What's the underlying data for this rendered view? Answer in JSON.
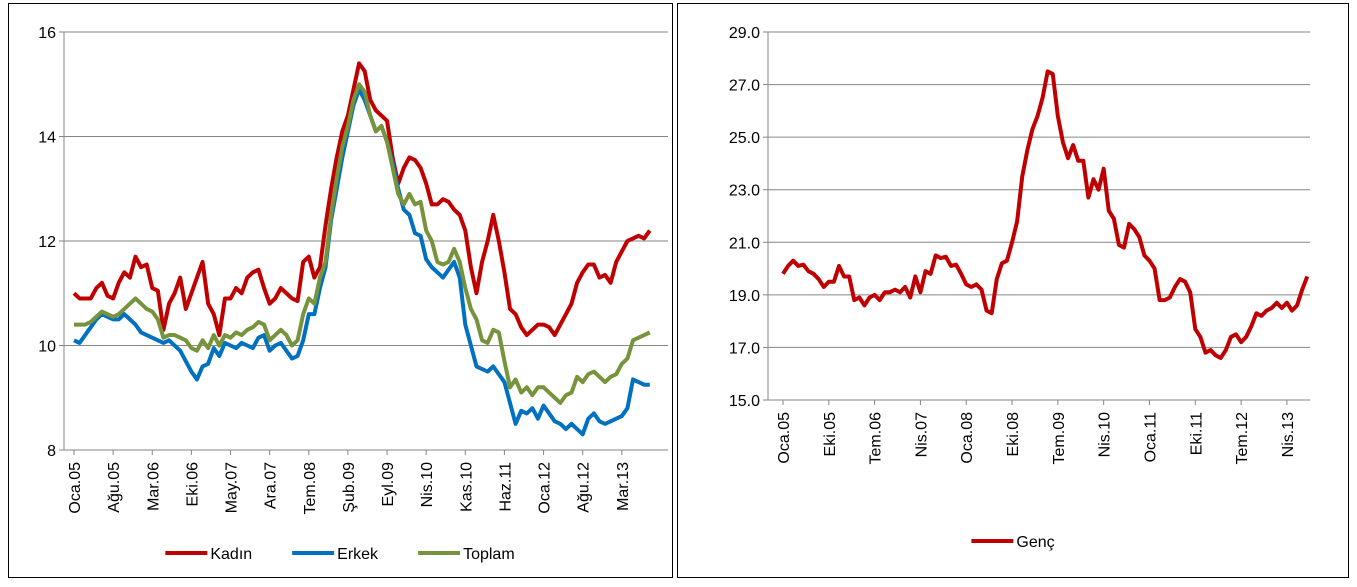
{
  "chart_data": [
    {
      "type": "line",
      "categories": [
        "Oca.05",
        null,
        null,
        null,
        null,
        null,
        null,
        "Ağu.05",
        null,
        null,
        null,
        null,
        null,
        null,
        "Mar.06",
        null,
        null,
        null,
        null,
        null,
        null,
        "Eki.06",
        null,
        null,
        null,
        null,
        null,
        null,
        "May.07",
        null,
        null,
        null,
        null,
        null,
        null,
        "Ara.07",
        null,
        null,
        null,
        null,
        null,
        null,
        "Tem.08",
        null,
        null,
        null,
        null,
        null,
        null,
        "Şub.09",
        null,
        null,
        null,
        null,
        null,
        null,
        "Eyl.09",
        null,
        null,
        null,
        null,
        null,
        null,
        "Nis.10",
        null,
        null,
        null,
        null,
        null,
        null,
        "Kas.10",
        null,
        null,
        null,
        null,
        null,
        null,
        "Haz.11",
        null,
        null,
        null,
        null,
        null,
        null,
        "Oca.12",
        null,
        null,
        null,
        null,
        null,
        null,
        "Ağu.12",
        null,
        null,
        null,
        null,
        null,
        null,
        "Mar.13",
        null,
        null,
        null,
        null,
        null
      ],
      "series": [
        {
          "name": "Kadın",
          "color": "#c00000",
          "values": [
            11.0,
            10.9,
            10.9,
            10.9,
            11.1,
            11.2,
            10.95,
            10.9,
            11.2,
            11.4,
            11.3,
            11.7,
            11.5,
            11.55,
            11.1,
            11.05,
            10.3,
            10.8,
            11.0,
            11.3,
            10.7,
            11.0,
            11.3,
            11.6,
            10.8,
            10.6,
            10.2,
            10.9,
            10.9,
            11.1,
            11.0,
            11.3,
            11.4,
            11.45,
            11.1,
            10.8,
            10.9,
            11.1,
            11.0,
            10.9,
            10.85,
            11.6,
            11.7,
            11.3,
            11.5,
            12.3,
            13.0,
            13.6,
            14.1,
            14.4,
            14.9,
            15.4,
            15.25,
            14.7,
            14.5,
            14.4,
            14.3,
            13.6,
            13.1,
            13.4,
            13.6,
            13.55,
            13.4,
            13.1,
            12.7,
            12.7,
            12.8,
            12.75,
            12.6,
            12.5,
            12.2,
            11.5,
            11.0,
            11.6,
            12.0,
            12.5,
            12.0,
            11.4,
            10.7,
            10.6,
            10.35,
            10.2,
            10.3,
            10.4,
            10.4,
            10.35,
            10.2,
            10.4,
            10.6,
            10.8,
            11.2,
            11.4,
            11.55,
            11.55,
            11.3,
            11.35,
            11.2,
            11.6,
            11.8,
            12.0,
            12.05,
            12.1,
            12.05,
            12.2
          ]
        },
        {
          "name": "Erkek",
          "color": "#0070c0",
          "values": [
            10.1,
            10.05,
            10.2,
            10.35,
            10.5,
            10.6,
            10.55,
            10.5,
            10.5,
            10.6,
            10.5,
            10.4,
            10.25,
            10.2,
            10.15,
            10.1,
            10.05,
            10.1,
            10.0,
            9.9,
            9.7,
            9.5,
            9.35,
            9.6,
            9.65,
            9.95,
            9.8,
            10.05,
            10.0,
            9.95,
            10.05,
            10.0,
            9.95,
            10.15,
            10.2,
            9.9,
            10.0,
            10.05,
            9.9,
            9.75,
            9.8,
            10.1,
            10.6,
            10.6,
            11.1,
            11.5,
            12.4,
            13.0,
            13.6,
            14.1,
            14.6,
            14.9,
            14.7,
            14.4,
            14.1,
            14.2,
            13.9,
            13.5,
            13.0,
            12.6,
            12.5,
            12.15,
            12.1,
            11.65,
            11.5,
            11.4,
            11.3,
            11.45,
            11.6,
            11.3,
            10.4,
            10.0,
            9.6,
            9.55,
            9.5,
            9.6,
            9.45,
            9.3,
            8.9,
            8.5,
            8.75,
            8.7,
            8.8,
            8.6,
            8.85,
            8.7,
            8.55,
            8.5,
            8.4,
            8.5,
            8.4,
            8.3,
            8.6,
            8.7,
            8.55,
            8.5,
            8.55,
            8.6,
            8.65,
            8.8,
            9.35,
            9.3,
            9.25,
            9.25
          ]
        },
        {
          "name": "Toplam",
          "color": "#77933c",
          "values": [
            10.4,
            10.4,
            10.4,
            10.45,
            10.55,
            10.65,
            10.6,
            10.55,
            10.6,
            10.7,
            10.8,
            10.9,
            10.8,
            10.7,
            10.65,
            10.5,
            10.15,
            10.2,
            10.2,
            10.15,
            10.1,
            9.95,
            9.9,
            10.1,
            9.95,
            10.2,
            10.0,
            10.2,
            10.15,
            10.25,
            10.2,
            10.3,
            10.35,
            10.45,
            10.4,
            10.1,
            10.2,
            10.3,
            10.2,
            10.0,
            10.1,
            10.6,
            10.9,
            10.8,
            11.3,
            11.6,
            12.5,
            13.2,
            13.8,
            14.2,
            14.7,
            15.0,
            14.85,
            14.4,
            14.1,
            14.2,
            13.9,
            13.4,
            12.9,
            12.7,
            12.9,
            12.7,
            12.75,
            12.2,
            12.0,
            11.6,
            11.55,
            11.6,
            11.85,
            11.6,
            11.1,
            10.7,
            10.5,
            10.1,
            10.05,
            10.3,
            10.25,
            9.7,
            9.2,
            9.35,
            9.1,
            9.2,
            9.05,
            9.2,
            9.2,
            9.1,
            9.0,
            8.9,
            9.05,
            9.1,
            9.4,
            9.3,
            9.45,
            9.5,
            9.4,
            9.3,
            9.4,
            9.45,
            9.65,
            9.75,
            10.1,
            10.15,
            10.2,
            10.25
          ]
        }
      ],
      "ylim": [
        8,
        16
      ],
      "yticks": [
        8,
        10,
        12,
        14,
        16
      ],
      "grid": true,
      "legend": "bottom"
    },
    {
      "type": "line",
      "categories": [
        "Oca.05",
        null,
        null,
        null,
        null,
        null,
        null,
        null,
        null,
        "Eki.05",
        null,
        null,
        null,
        null,
        null,
        null,
        null,
        null,
        "Tem.06",
        null,
        null,
        null,
        null,
        null,
        null,
        null,
        null,
        "Nis.07",
        null,
        null,
        null,
        null,
        null,
        null,
        null,
        null,
        "Oca.08",
        null,
        null,
        null,
        null,
        null,
        null,
        null,
        null,
        "Eki.08",
        null,
        null,
        null,
        null,
        null,
        null,
        null,
        null,
        "Tem.09",
        null,
        null,
        null,
        null,
        null,
        null,
        null,
        null,
        "Nis.10",
        null,
        null,
        null,
        null,
        null,
        null,
        null,
        null,
        "Oca.11",
        null,
        null,
        null,
        null,
        null,
        null,
        null,
        null,
        "Eki.11",
        null,
        null,
        null,
        null,
        null,
        null,
        null,
        null,
        "Tem.12",
        null,
        null,
        null,
        null,
        null,
        null,
        null,
        null,
        "Nis.13",
        null,
        null,
        null,
        null
      ],
      "series": [
        {
          "name": "Genç",
          "color": "#c00000",
          "values": [
            19.8,
            20.1,
            20.3,
            20.1,
            20.15,
            19.9,
            19.8,
            19.6,
            19.3,
            19.5,
            19.5,
            20.1,
            19.7,
            19.7,
            18.8,
            18.9,
            18.6,
            18.9,
            19.0,
            18.8,
            19.1,
            19.1,
            19.2,
            19.1,
            19.3,
            18.9,
            19.7,
            19.1,
            19.9,
            19.8,
            20.5,
            20.4,
            20.45,
            20.1,
            20.15,
            19.8,
            19.4,
            19.3,
            19.4,
            19.2,
            18.4,
            18.3,
            19.6,
            20.2,
            20.3,
            21.0,
            21.8,
            23.5,
            24.5,
            25.3,
            25.8,
            26.5,
            27.5,
            27.4,
            25.8,
            24.8,
            24.2,
            24.7,
            24.1,
            24.1,
            22.7,
            23.4,
            23.0,
            23.8,
            22.2,
            21.9,
            20.9,
            20.8,
            21.7,
            21.5,
            21.2,
            20.5,
            20.3,
            20.0,
            18.8,
            18.8,
            18.9,
            19.3,
            19.6,
            19.5,
            19.1,
            17.7,
            17.4,
            16.8,
            16.9,
            16.7,
            16.6,
            16.9,
            17.4,
            17.5,
            17.2,
            17.4,
            17.8,
            18.3,
            18.2,
            18.4,
            18.5,
            18.7,
            18.5,
            18.7,
            18.4,
            18.6,
            19.2,
            19.7
          ]
        }
      ],
      "ylim": [
        15,
        29
      ],
      "yticks": [
        {
          "value": 15,
          "label": "15.0"
        },
        {
          "value": 17,
          "label": "17.0"
        },
        {
          "value": 19,
          "label": "19.0"
        },
        {
          "value": 21,
          "label": "21.0"
        },
        {
          "value": 23,
          "label": "23.0"
        },
        {
          "value": 25,
          "label": "25.0"
        },
        {
          "value": 27,
          "label": "27.0"
        },
        {
          "value": 29,
          "label": "29.0"
        }
      ],
      "grid": true,
      "legend": "bottom"
    }
  ]
}
